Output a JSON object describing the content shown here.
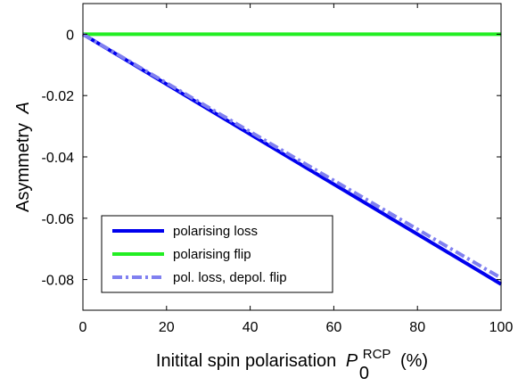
{
  "chart_data": {
    "type": "line",
    "xlabel": {
      "main": "Initital spin polarisation",
      "sym": "P",
      "sub": "0",
      "sup": "RCP",
      "unit": "(%)"
    },
    "ylabel": {
      "main": "Asymmetry",
      "sym": "A"
    },
    "xlim": [
      0,
      100
    ],
    "ylim": [
      -0.09,
      0.01
    ],
    "xticks": [
      0,
      20,
      40,
      60,
      80,
      100
    ],
    "xtick_labels": [
      "0",
      "20",
      "40",
      "60",
      "80",
      "100"
    ],
    "yticks": [
      0,
      -0.02,
      -0.04,
      -0.06,
      -0.08
    ],
    "ytick_labels": [
      "0",
      "-0.02",
      "-0.04",
      "-0.06",
      "-0.08"
    ],
    "grid": false,
    "legend_position": "bottom-left",
    "series": [
      {
        "name": "polarising loss",
        "x": [
          0,
          100
        ],
        "y": [
          0,
          -0.0815
        ],
        "color": "#0000ee",
        "style": "solid"
      },
      {
        "name": "polarising flip",
        "x": [
          0,
          100
        ],
        "y": [
          0,
          0
        ],
        "color": "#22ee22",
        "style": "solid"
      },
      {
        "name": "pol. loss, depol. flip",
        "x": [
          0,
          100
        ],
        "y": [
          0,
          -0.0795
        ],
        "color": "#8080f0",
        "style": "dashdot"
      }
    ]
  }
}
